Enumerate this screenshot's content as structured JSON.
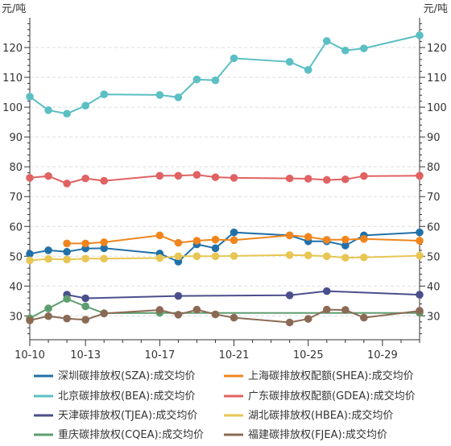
{
  "chart_data": {
    "type": "line",
    "title": "",
    "y_unit_left": "元/吨",
    "y_unit_right": "元/吨",
    "ylim": [
      22,
      130
    ],
    "yticks": [
      30,
      40,
      50,
      60,
      70,
      80,
      90,
      100,
      110,
      120
    ],
    "x_tick_labels": [
      "10-10",
      "10-13",
      "10-17",
      "10-21",
      "10-25",
      "10-29"
    ],
    "x_tick_days": [
      10,
      13,
      17,
      21,
      25,
      29
    ],
    "xlim": [
      10,
      31
    ],
    "grid": true,
    "legend_position": "bottom",
    "series": [
      {
        "name": "深圳碳排放权(SZA):成交均价",
        "color": "#2171a8",
        "x": [
          10,
          11,
          12,
          13,
          14,
          17,
          18,
          19,
          20,
          21,
          24,
          25,
          26,
          27,
          28,
          31
        ],
        "y": [
          50.8,
          52.0,
          51.5,
          52.6,
          52.7,
          50.9,
          48.2,
          54.0,
          52.7,
          58.0,
          57.0,
          55.0,
          55.0,
          53.6,
          57.0,
          58.0
        ]
      },
      {
        "name": "上海碳排放权配额(SHEA):成交均价",
        "color": "#f0851d",
        "x": [
          12,
          13,
          14,
          17,
          18,
          19,
          20,
          21,
          24,
          25,
          26,
          27,
          28,
          31
        ],
        "y": [
          54.3,
          54.3,
          54.7,
          57.0,
          54.5,
          55.2,
          55.6,
          55.4,
          57.0,
          56.5,
          55.5,
          55.6,
          55.8,
          55.2
        ]
      },
      {
        "name": "北京碳排放权(BEA):成交均价",
        "color": "#5bbfc3",
        "x": [
          10,
          11,
          12,
          13,
          14,
          17,
          18,
          19,
          20,
          21,
          24,
          25,
          26,
          27,
          28,
          31
        ],
        "y": [
          103.5,
          99.0,
          97.8,
          100.5,
          104.3,
          104.1,
          103.3,
          109.3,
          109.0,
          116.4,
          115.2,
          112.5,
          122.2,
          119.0,
          119.7,
          124.1
        ]
      },
      {
        "name": "广东碳排放权配额(GDEA):成交均价",
        "color": "#e06262",
        "x": [
          10,
          11,
          12,
          13,
          14,
          17,
          18,
          19,
          20,
          21,
          24,
          25,
          26,
          27,
          28,
          31
        ],
        "y": [
          76.3,
          76.9,
          74.4,
          76.1,
          75.3,
          77.0,
          77.0,
          77.3,
          76.5,
          76.3,
          76.1,
          76.0,
          75.6,
          75.8,
          76.9,
          77.0
        ]
      },
      {
        "name": "天津碳排放权(TJEA):成交均价",
        "color": "#4a4f8c",
        "x": [
          12,
          13,
          18,
          24,
          26,
          31
        ],
        "y": [
          37.1,
          35.9,
          36.7,
          36.9,
          38.3,
          37.1
        ]
      },
      {
        "name": "湖北碳排放权(HBEA):成交均价",
        "color": "#e8c653",
        "x": [
          10,
          11,
          12,
          13,
          14,
          17,
          18,
          19,
          20,
          21,
          24,
          25,
          26,
          27,
          28,
          31
        ],
        "y": [
          48.6,
          49.1,
          48.9,
          49.2,
          49.2,
          49.4,
          50.0,
          50.0,
          50.0,
          50.1,
          50.4,
          50.3,
          50.0,
          49.5,
          49.6,
          50.2
        ]
      },
      {
        "name": "重庆碳排放权(CQEA):成交均价",
        "color": "#5e9e6e",
        "x": [
          10,
          11,
          12,
          13,
          14,
          17,
          31
        ],
        "y": [
          29.2,
          32.5,
          35.7,
          33.2,
          30.9,
          31.0,
          31.0
        ]
      },
      {
        "name": "福建碳排放权(FJEA):成交均价",
        "color": "#8b6a55",
        "x": [
          10,
          11,
          12,
          13,
          14,
          17,
          18,
          19,
          20,
          21,
          24,
          25,
          26,
          27,
          28,
          31
        ],
        "y": [
          28.5,
          29.9,
          29.1,
          28.7,
          30.8,
          32.0,
          30.4,
          32.1,
          30.5,
          29.4,
          27.8,
          29.0,
          32.1,
          32.0,
          29.4,
          31.7
        ]
      }
    ]
  }
}
